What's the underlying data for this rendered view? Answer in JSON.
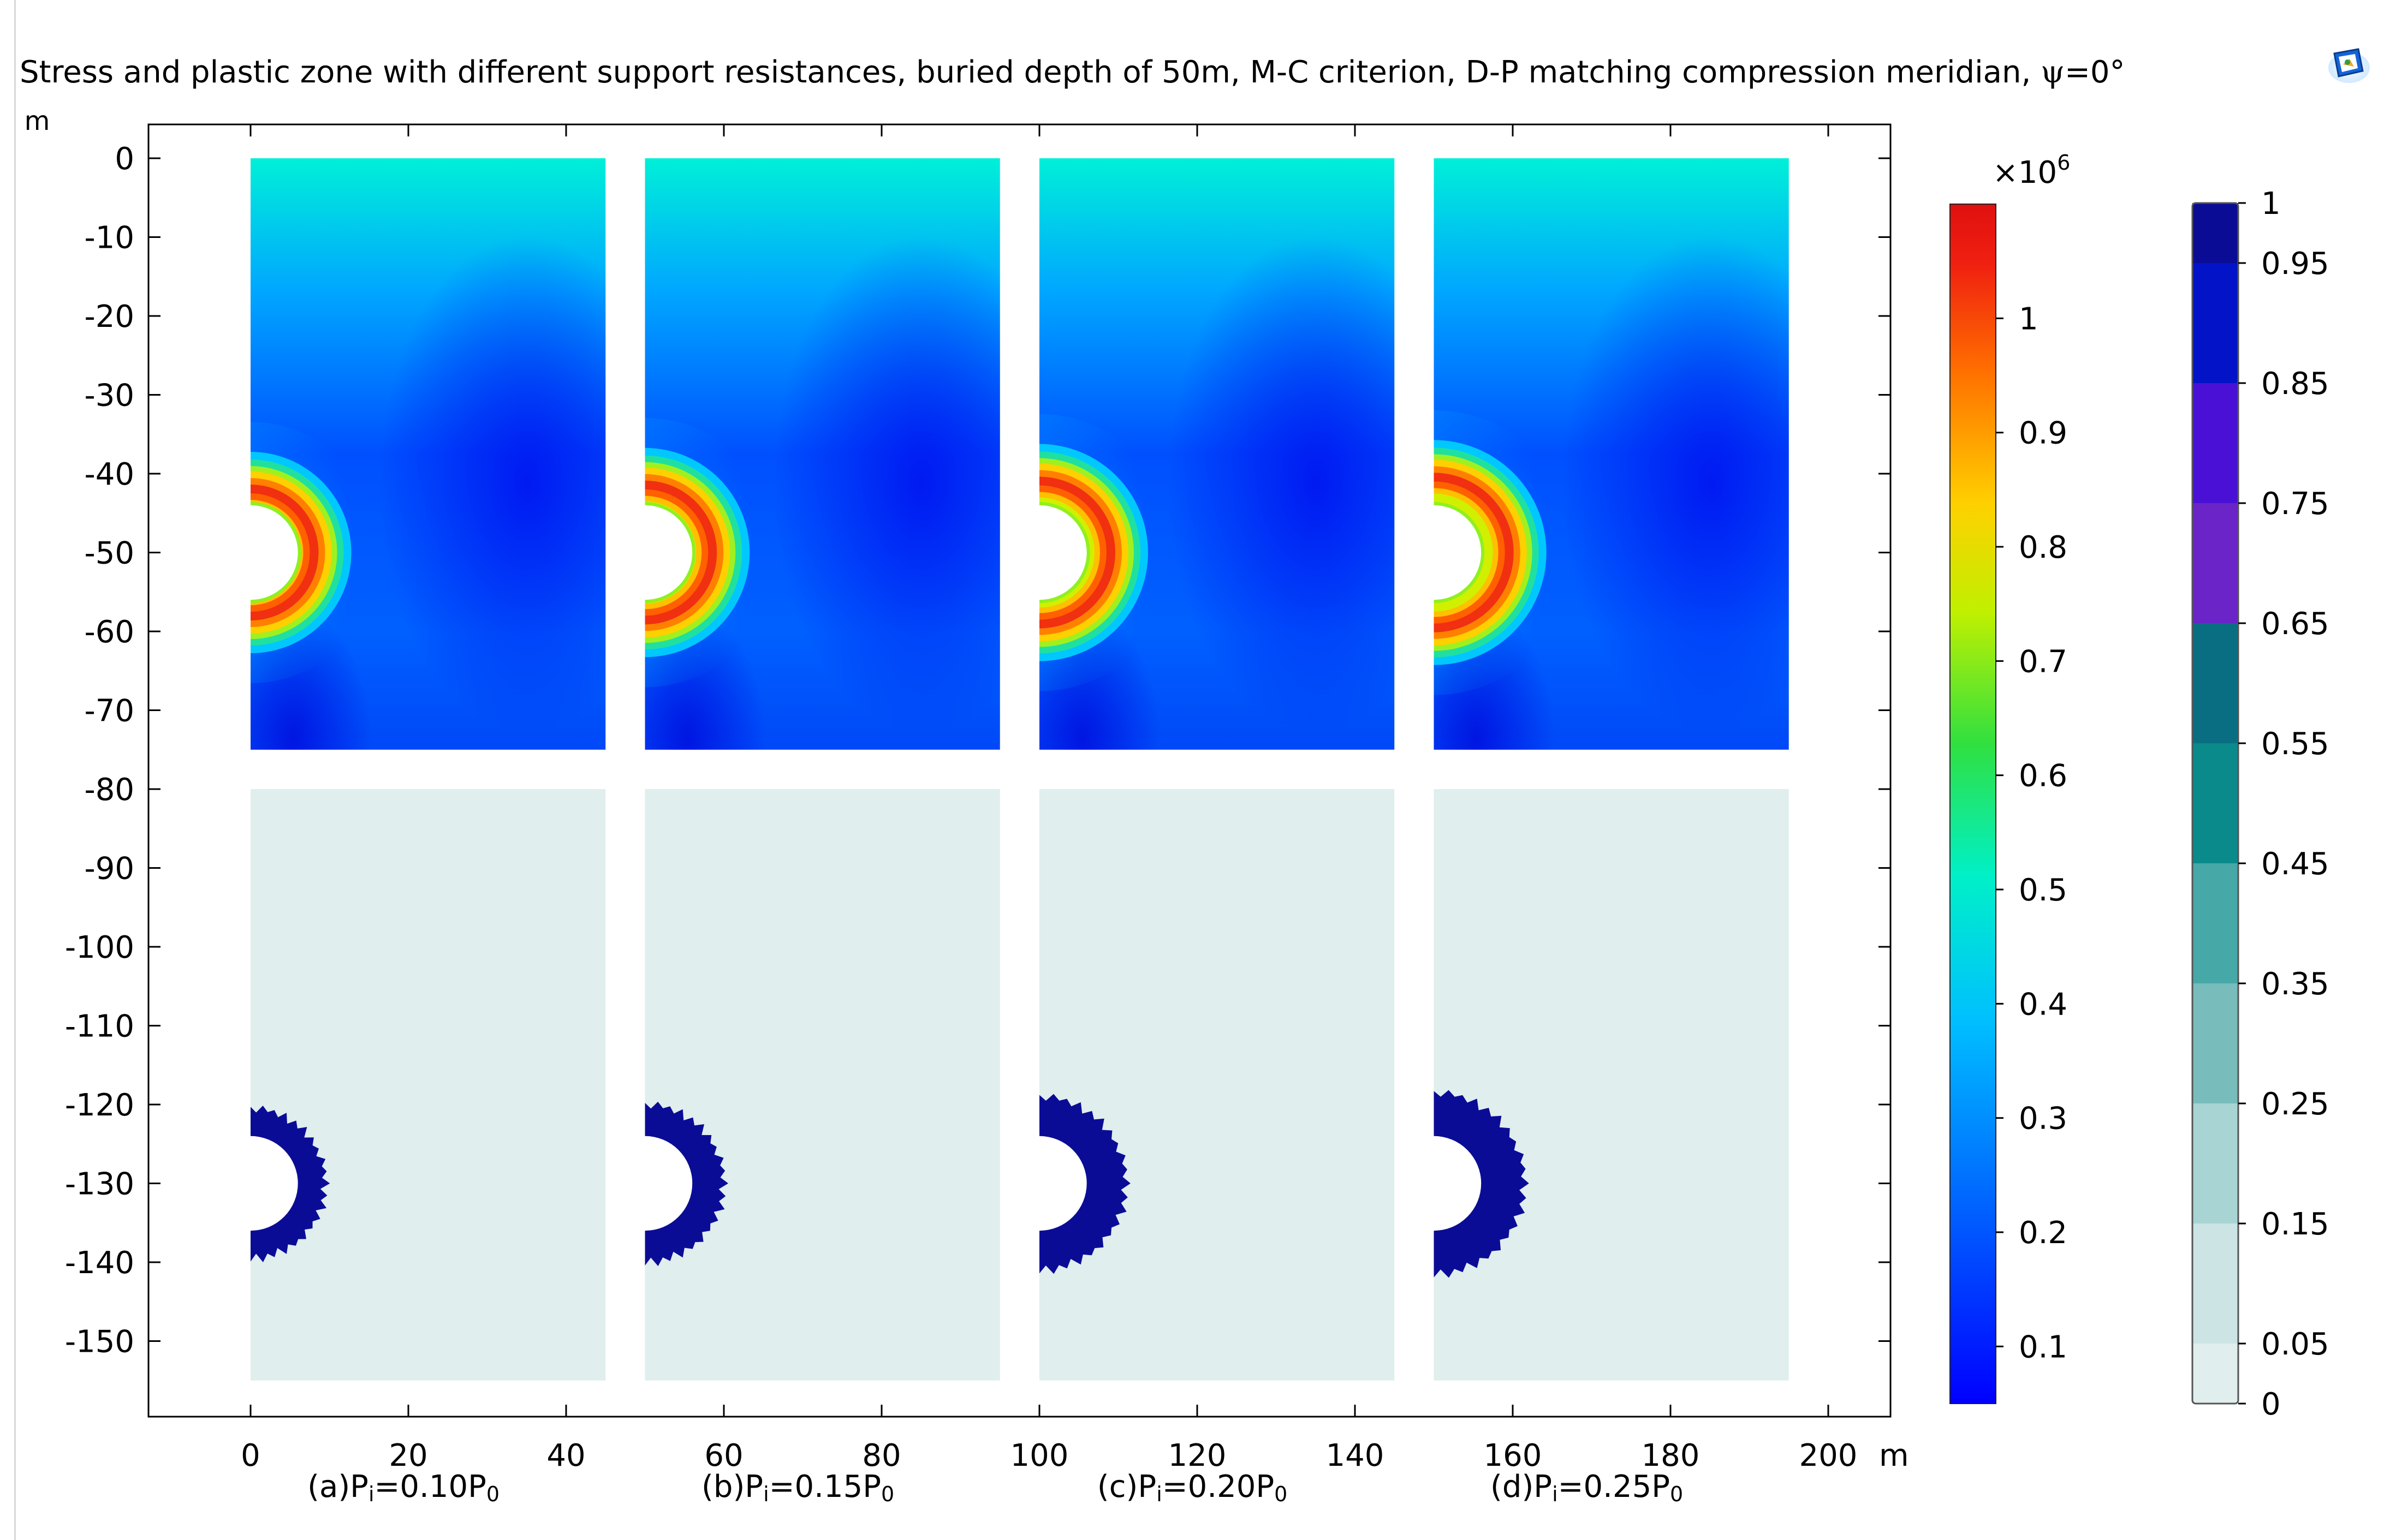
{
  "title": {
    "text": "Stress and plastic zone with different support resistances, buried depth of 50m, M-C criterion, D-P matching compression meridian, ",
    "psi_symbol": "ψ",
    "psi_value": "=0°"
  },
  "toolbar_icon": "model-window-icon",
  "colors": {
    "background": "#ffffff",
    "plastic_zone": "#0b0c96",
    "elastic_zone": "#e0eeee"
  },
  "chart_data": {
    "type": "heatmap",
    "title": "Stress and plastic zone with different support resistances, buried depth of 50m, M-C criterion, D-P matching compression meridian, ψ=0°",
    "x_unit": "m",
    "y_unit": "m",
    "xlim": [
      -13,
      208
    ],
    "ylim": [
      -160,
      2
    ],
    "x_ticks": [
      0,
      20,
      40,
      60,
      80,
      100,
      120,
      140,
      160,
      180,
      200
    ],
    "y_ticks": [
      0,
      -10,
      -20,
      -30,
      -40,
      -50,
      -60,
      -70,
      -80,
      -90,
      -100,
      -110,
      -120,
      -130,
      -140,
      -150
    ],
    "grid": false,
    "cases": [
      {
        "label_main": "(a)P",
        "label_sub1": "i",
        "label_mid": "=0.10P",
        "label_sub2": "0",
        "pi_over_p0": 0.1,
        "x_range": [
          0,
          45
        ],
        "opening_center_y": -50,
        "opening_radius": 6,
        "stress_peak_radius": 10,
        "plastic_radius": 9.5
      },
      {
        "label_main": "(b)P",
        "label_sub1": "i",
        "label_mid": "=0.15P",
        "label_sub2": "0",
        "pi_over_p0": 0.15,
        "x_range": [
          50,
          95
        ],
        "opening_center_y": -50,
        "opening_radius": 6,
        "stress_peak_radius": 10.5,
        "plastic_radius": 10
      },
      {
        "label_main": "(c)P",
        "label_sub1": "i",
        "label_mid": "=0.20P",
        "label_sub2": "0",
        "pi_over_p0": 0.2,
        "x_range": [
          100,
          145
        ],
        "opening_center_y": -50,
        "opening_radius": 6,
        "stress_peak_radius": 11,
        "plastic_radius": 11
      },
      {
        "label_main": "(d)P",
        "label_sub1": "i",
        "label_mid": "=0.25P",
        "label_sub2": "0",
        "pi_over_p0": 0.25,
        "x_range": [
          150,
          195
        ],
        "opening_center_y": -50,
        "opening_radius": 6,
        "stress_peak_radius": 11.5,
        "plastic_radius": 11.5
      }
    ],
    "stress_panel_y_range": [
      -75,
      0
    ],
    "plastic_panel_y_range": [
      -155,
      -80
    ],
    "plastic_offset_y": -80,
    "stress_colorbar": {
      "multiplier_base": "×10",
      "multiplier_exp": "6",
      "range": [
        0.05,
        1.1
      ],
      "ticks": [
        1,
        0.9,
        0.8,
        0.7,
        0.6,
        0.5,
        0.4,
        0.3,
        0.2,
        0.1
      ],
      "colormap": "rainbow"
    },
    "plastic_colorbar": {
      "range": [
        0,
        1
      ],
      "tick_labels": [
        "1",
        "0.95",
        "0.85",
        "0.75",
        "0.65",
        "0.55",
        "0.45",
        "0.35",
        "0.25",
        "0.15",
        "0.05",
        "0"
      ],
      "tick_values": [
        1,
        0.95,
        0.85,
        0.75,
        0.65,
        0.55,
        0.45,
        0.35,
        0.25,
        0.15,
        0.05,
        0
      ],
      "band_colors": [
        "#0b0c96",
        "#0313c8",
        "#4a10d6",
        "#6a24c8",
        "#0a6e82",
        "#0a8a8a",
        "#47a8a8",
        "#78bcbc",
        "#a8d4d4",
        "#cce4e4",
        "#e0eeee"
      ]
    }
  }
}
